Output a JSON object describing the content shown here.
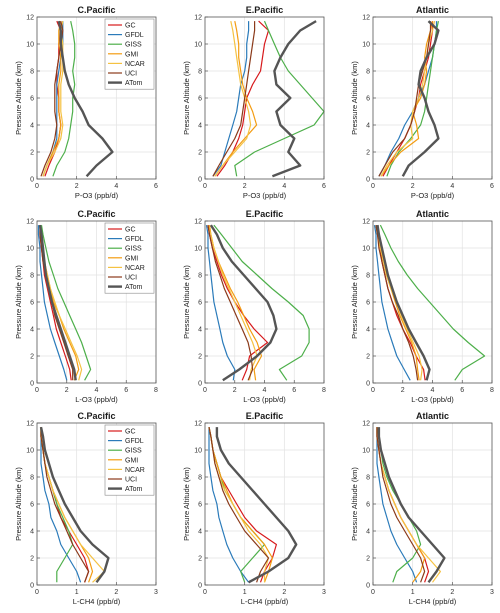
{
  "chart_data": {
    "type": "line",
    "ylabel": "Pressure Altitude (km)",
    "ylim": [
      0,
      12
    ],
    "yticks": [
      0,
      2,
      4,
      6,
      8,
      10,
      12
    ],
    "grid": true,
    "legend_location": "top-right",
    "series_styles": [
      {
        "name": "GC",
        "color": "#d7191c",
        "width": 1.2
      },
      {
        "name": "GFDL",
        "color": "#2b7bba",
        "width": 1.2
      },
      {
        "name": "GISS",
        "color": "#4daf4a",
        "width": 1.2
      },
      {
        "name": "GMI",
        "color": "#f39c12",
        "width": 1.2
      },
      {
        "name": "NCAR",
        "color": "#f5c242",
        "width": 1.2
      },
      {
        "name": "UCI",
        "color": "#8b3a1a",
        "width": 1.2
      },
      {
        "name": "ATom",
        "color": "#555555",
        "width": 2.4
      }
    ],
    "altitudes": [
      0.2,
      1,
      2,
      3,
      4,
      5,
      6,
      7,
      8,
      9,
      10,
      11,
      11.7
    ],
    "panels": [
      {
        "title": "C.Pacific",
        "xlabel": "P-O3  (ppb/d)",
        "xlim": [
          0,
          6
        ],
        "xticks": [
          0,
          2,
          4,
          6
        ],
        "legend": true,
        "series": {
          "GC": [
            0.4,
            0.6,
            0.9,
            1.1,
            1.2,
            1.1,
            1.1,
            1.0,
            1.0,
            1.1,
            1.1,
            1.2,
            1.0
          ],
          "GFDL": [
            0.3,
            0.5,
            0.8,
            1.0,
            1.0,
            1.0,
            1.0,
            1.0,
            1.1,
            1.2,
            1.3,
            1.3,
            1.3
          ],
          "GISS": [
            0.8,
            1.0,
            1.4,
            1.6,
            1.7,
            1.8,
            1.8,
            1.9,
            1.8,
            1.9,
            1.9,
            1.8,
            1.7
          ],
          "GMI": [
            0.3,
            0.5,
            0.8,
            1.1,
            1.2,
            1.1,
            1.1,
            1.1,
            1.2,
            1.2,
            1.1,
            1.1,
            1.2
          ],
          "NCAR": [
            0.3,
            0.5,
            0.9,
            1.2,
            1.3,
            1.2,
            1.2,
            1.2,
            1.3,
            1.3,
            1.3,
            1.2,
            1.3
          ],
          "UCI": [
            0.2,
            0.4,
            0.7,
            0.9,
            1.0,
            0.9,
            0.9,
            0.9,
            1.0,
            1.1,
            1.2,
            1.3,
            1.2
          ],
          "ATom": [
            2.5,
            3.0,
            3.8,
            3.3,
            2.6,
            2.3,
            1.9,
            1.6,
            1.4,
            1.3,
            1.2,
            1.2,
            1.1
          ]
        }
      },
      {
        "title": "E.Pacific",
        "xlabel": "P-O3  (ppb/d)",
        "xlim": [
          0,
          6
        ],
        "xticks": [
          0,
          2,
          4,
          6
        ],
        "legend": false,
        "series": {
          "GC": [
            0.6,
            1.0,
            1.4,
            1.7,
            1.9,
            2.0,
            2.1,
            2.4,
            2.8,
            2.9,
            3.0,
            3.2,
            2.7
          ],
          "GFDL": [
            0.4,
            0.8,
            1.0,
            1.2,
            1.4,
            1.6,
            1.7,
            1.8,
            2.0,
            2.1,
            2.1,
            2.2,
            2.2
          ],
          "GISS": [
            1.6,
            1.5,
            2.5,
            4.0,
            5.5,
            6.0,
            5.4,
            4.8,
            4.2,
            3.8,
            3.5,
            3.2,
            3.0
          ],
          "GMI": [
            0.5,
            0.9,
            1.4,
            2.0,
            2.6,
            2.4,
            2.1,
            1.9,
            1.8,
            1.7,
            1.7,
            1.6,
            1.5
          ],
          "NCAR": [
            0.5,
            0.9,
            1.5,
            2.1,
            2.3,
            2.2,
            2.0,
            1.8,
            1.7,
            1.6,
            1.5,
            1.4,
            1.3
          ],
          "UCI": [
            0.4,
            0.7,
            1.1,
            1.5,
            1.8,
            1.9,
            2.0,
            2.1,
            2.2,
            2.3,
            2.4,
            2.5,
            2.5
          ],
          "ATom": [
            3.4,
            4.8,
            4.2,
            4.5,
            3.8,
            3.6,
            4.3,
            3.6,
            3.5,
            3.8,
            4.2,
            4.8,
            5.6
          ]
        }
      },
      {
        "title": "Atlantic",
        "xlabel": "P-O3  (ppb/d)",
        "xlim": [
          0,
          6
        ],
        "xticks": [
          0,
          2,
          4,
          6
        ],
        "legend": false,
        "series": {
          "GC": [
            0.5,
            0.8,
            1.2,
            1.6,
            1.9,
            2.1,
            2.3,
            2.4,
            2.6,
            2.8,
            2.9,
            3.0,
            3.0
          ],
          "GFDL": [
            0.3,
            0.6,
            0.9,
            1.3,
            1.6,
            2.0,
            2.3,
            2.6,
            2.8,
            3.0,
            3.1,
            3.2,
            3.2
          ],
          "GISS": [
            0.7,
            0.9,
            1.3,
            1.9,
            2.4,
            2.6,
            2.7,
            2.8,
            2.9,
            3.0,
            3.1,
            3.2,
            3.3
          ],
          "GMI": [
            0.4,
            0.8,
            1.4,
            2.3,
            2.2,
            2.0,
            2.4,
            2.6,
            2.7,
            2.6,
            2.7,
            2.9,
            3.0
          ],
          "NCAR": [
            0.4,
            0.7,
            1.2,
            2.0,
            1.9,
            2.0,
            2.3,
            2.5,
            2.6,
            2.7,
            2.8,
            3.0,
            3.1
          ],
          "UCI": [
            0.3,
            0.6,
            1.0,
            1.6,
            1.9,
            2.1,
            2.2,
            2.3,
            2.5,
            2.7,
            2.8,
            2.9,
            2.9
          ],
          "ATom": [
            1.5,
            1.8,
            2.6,
            3.3,
            3.1,
            2.8,
            2.6,
            2.3,
            2.4,
            2.7,
            3.1,
            3.3,
            2.8
          ]
        }
      },
      {
        "title": "C.Pacific",
        "xlabel": "L-O3  (ppb/d)",
        "xlim": [
          0,
          8
        ],
        "xticks": [
          0,
          2,
          4,
          6,
          8
        ],
        "legend": true,
        "series": {
          "GC": [
            2.3,
            2.2,
            1.9,
            1.6,
            1.3,
            1.1,
            0.9,
            0.7,
            0.5,
            0.4,
            0.3,
            0.2,
            0.2
          ],
          "GFDL": [
            2.0,
            1.8,
            1.5,
            1.2,
            0.9,
            0.7,
            0.5,
            0.4,
            0.3,
            0.2,
            0.2,
            0.1,
            0.1
          ],
          "GISS": [
            3.2,
            3.6,
            3.3,
            3.0,
            2.6,
            2.2,
            1.8,
            1.4,
            1.1,
            0.8,
            0.6,
            0.4,
            0.3
          ],
          "GMI": [
            2.5,
            2.8,
            2.6,
            2.2,
            1.8,
            1.5,
            1.1,
            0.9,
            0.7,
            0.5,
            0.4,
            0.3,
            0.2
          ],
          "NCAR": [
            2.8,
            3.0,
            2.7,
            2.3,
            1.9,
            1.5,
            1.2,
            0.9,
            0.7,
            0.5,
            0.4,
            0.3,
            0.2
          ],
          "UCI": [
            2.4,
            2.4,
            2.1,
            1.8,
            1.5,
            1.2,
            1.0,
            0.8,
            0.6,
            0.4,
            0.3,
            0.2,
            0.2
          ],
          "ATom": [
            2.6,
            2.5,
            2.2,
            1.9,
            1.6,
            1.3,
            1.0,
            0.8,
            0.6,
            0.5,
            0.4,
            0.3,
            0.2
          ]
        }
      },
      {
        "title": "E.Pacific",
        "xlabel": "L-O3  (ppb/d)",
        "xlim": [
          0,
          8
        ],
        "xticks": [
          0,
          2,
          4,
          6,
          8
        ],
        "legend": false,
        "series": {
          "GC": [
            2.5,
            2.8,
            3.0,
            4.2,
            3.3,
            2.6,
            2.0,
            1.5,
            1.1,
            0.8,
            0.5,
            0.3,
            0.2
          ],
          "GFDL": [
            1.9,
            2.0,
            1.5,
            1.2,
            1.0,
            0.8,
            0.6,
            0.5,
            0.4,
            0.3,
            0.2,
            0.2,
            0.1
          ],
          "GISS": [
            5.5,
            5.0,
            6.5,
            7.0,
            7.0,
            6.6,
            5.6,
            4.5,
            3.5,
            2.5,
            1.8,
            1.1,
            0.6
          ],
          "GMI": [
            3.4,
            3.3,
            3.8,
            3.5,
            3.0,
            2.6,
            2.2,
            1.7,
            1.3,
            0.9,
            0.6,
            0.4,
            0.3
          ],
          "NCAR": [
            3.0,
            3.1,
            3.5,
            3.2,
            2.8,
            2.4,
            2.0,
            1.6,
            1.2,
            0.9,
            0.6,
            0.4,
            0.2
          ],
          "UCI": [
            2.9,
            3.2,
            3.1,
            2.9,
            2.5,
            2.1,
            1.7,
            1.3,
            1.0,
            0.7,
            0.5,
            0.3,
            0.2
          ],
          "ATom": [
            1.2,
            2.3,
            3.5,
            4.4,
            4.8,
            4.6,
            4.2,
            3.4,
            2.6,
            1.8,
            1.2,
            0.8,
            0.4
          ]
        }
      },
      {
        "title": "Atlantic",
        "xlabel": "L-O3  (ppb/d)",
        "xlim": [
          0,
          8
        ],
        "xticks": [
          0,
          2,
          4,
          6,
          8
        ],
        "legend": false,
        "series": {
          "GC": [
            3.5,
            3.4,
            2.9,
            2.5,
            2.0,
            1.6,
            1.3,
            1.0,
            0.8,
            0.6,
            0.5,
            0.3,
            0.2
          ],
          "GFDL": [
            2.5,
            2.1,
            1.6,
            1.3,
            1.0,
            0.8,
            0.6,
            0.5,
            0.4,
            0.3,
            0.2,
            0.2,
            0.1
          ],
          "GISS": [
            5.5,
            6.0,
            7.5,
            6.4,
            5.4,
            4.6,
            3.8,
            3.0,
            2.3,
            1.7,
            1.2,
            0.8,
            0.5
          ],
          "GMI": [
            3.1,
            3.0,
            2.9,
            2.6,
            2.2,
            1.8,
            1.5,
            1.2,
            0.9,
            0.7,
            0.5,
            0.3,
            0.2
          ],
          "NCAR": [
            3.2,
            3.3,
            3.1,
            2.7,
            2.3,
            1.9,
            1.6,
            1.2,
            0.9,
            0.7,
            0.5,
            0.3,
            0.2
          ],
          "UCI": [
            3.0,
            2.9,
            2.7,
            2.4,
            2.0,
            1.7,
            1.3,
            1.0,
            0.8,
            0.6,
            0.4,
            0.3,
            0.2
          ],
          "ATom": [
            3.6,
            3.8,
            3.4,
            2.9,
            2.4,
            2.0,
            1.6,
            1.3,
            1.0,
            0.8,
            0.6,
            0.4,
            0.3
          ]
        }
      },
      {
        "title": "C.Pacific",
        "xlabel": "L-CH4  (ppb/d)",
        "xlim": [
          0,
          3
        ],
        "xticks": [
          0,
          1,
          2,
          3
        ],
        "legend": true,
        "series": {
          "GC": [
            1.2,
            1.3,
            1.2,
            1.0,
            0.8,
            0.6,
            0.5,
            0.4,
            0.3,
            0.2,
            0.15,
            0.1,
            0.1
          ],
          "GFDL": [
            1.1,
            1.0,
            0.8,
            0.6,
            0.5,
            0.35,
            0.3,
            0.2,
            0.15,
            0.1,
            0.1,
            0.1,
            0.1
          ],
          "GISS": [
            0.5,
            0.5,
            0.7,
            0.9,
            0.8,
            0.65,
            0.5,
            0.4,
            0.3,
            0.2,
            0.15,
            0.1,
            0.1
          ],
          "GMI": [
            1.3,
            1.4,
            1.3,
            1.1,
            0.9,
            0.7,
            0.55,
            0.4,
            0.3,
            0.2,
            0.15,
            0.1,
            0.1
          ],
          "NCAR": [
            1.4,
            1.7,
            1.4,
            1.1,
            0.9,
            0.7,
            0.55,
            0.4,
            0.3,
            0.2,
            0.15,
            0.1,
            0.1
          ],
          "UCI": [
            1.2,
            1.3,
            1.1,
            0.9,
            0.75,
            0.6,
            0.45,
            0.35,
            0.25,
            0.2,
            0.15,
            0.1,
            0.1
          ],
          "ATom": [
            1.5,
            1.7,
            1.8,
            1.4,
            1.1,
            0.9,
            0.7,
            0.55,
            0.4,
            0.3,
            0.2,
            0.15,
            0.1
          ]
        }
      },
      {
        "title": "E.Pacific",
        "xlabel": "L-CH4  (ppb/d)",
        "xlim": [
          0,
          3
        ],
        "xticks": [
          0,
          1,
          2,
          3
        ],
        "legend": false,
        "series": {
          "GC": [
            1.4,
            1.5,
            1.7,
            1.8,
            1.3,
            1.0,
            0.8,
            0.6,
            0.4,
            0.3,
            0.2,
            0.15,
            0.1
          ],
          "GFDL": [
            1.1,
            0.9,
            0.7,
            0.55,
            0.45,
            0.35,
            0.3,
            0.2,
            0.15,
            0.1,
            0.1,
            0.1,
            0.1
          ],
          "GISS": [
            1.0,
            0.9,
            1.2,
            1.5,
            1.2,
            0.9,
            0.7,
            0.5,
            0.4,
            0.3,
            0.2,
            0.15,
            0.1
          ],
          "GMI": [
            1.5,
            1.6,
            1.7,
            1.5,
            1.2,
            0.9,
            0.7,
            0.55,
            0.4,
            0.3,
            0.2,
            0.15,
            0.1
          ],
          "NCAR": [
            1.5,
            1.5,
            1.6,
            1.4,
            1.1,
            0.9,
            0.7,
            0.5,
            0.35,
            0.25,
            0.2,
            0.15,
            0.1
          ],
          "UCI": [
            1.3,
            1.4,
            1.6,
            1.3,
            1.0,
            0.8,
            0.6,
            0.45,
            0.35,
            0.25,
            0.2,
            0.15,
            0.1
          ],
          "ATom": [
            1.1,
            1.6,
            2.1,
            2.3,
            2.1,
            1.8,
            1.5,
            1.2,
            0.9,
            0.6,
            0.4,
            0.3,
            0.3
          ]
        }
      },
      {
        "title": "Atlantic",
        "xlabel": "L-CH4  (ppb/d)",
        "xlim": [
          0,
          3
        ],
        "xticks": [
          0,
          1,
          2,
          3
        ],
        "legend": false,
        "series": {
          "GC": [
            1.3,
            1.4,
            1.3,
            1.1,
            0.9,
            0.7,
            0.55,
            0.4,
            0.3,
            0.2,
            0.15,
            0.1,
            0.1
          ],
          "GFDL": [
            1.1,
            1.0,
            0.8,
            0.6,
            0.45,
            0.35,
            0.25,
            0.2,
            0.15,
            0.1,
            0.1,
            0.1,
            0.1
          ],
          "GISS": [
            0.5,
            0.6,
            1.0,
            1.2,
            1.1,
            0.9,
            0.7,
            0.5,
            0.35,
            0.25,
            0.2,
            0.15,
            0.1
          ],
          "GMI": [
            1.0,
            1.2,
            1.3,
            1.1,
            0.9,
            0.7,
            0.55,
            0.4,
            0.3,
            0.2,
            0.15,
            0.1,
            0.1
          ],
          "NCAR": [
            1.5,
            1.7,
            1.4,
            1.1,
            0.9,
            0.7,
            0.55,
            0.4,
            0.3,
            0.2,
            0.15,
            0.1,
            0.1
          ],
          "UCI": [
            1.2,
            1.3,
            1.2,
            1.0,
            0.8,
            0.6,
            0.45,
            0.35,
            0.25,
            0.2,
            0.15,
            0.1,
            0.1
          ],
          "ATom": [
            1.4,
            1.6,
            1.8,
            1.5,
            1.2,
            0.9,
            0.7,
            0.55,
            0.4,
            0.3,
            0.2,
            0.15,
            0.15
          ]
        }
      }
    ]
  }
}
